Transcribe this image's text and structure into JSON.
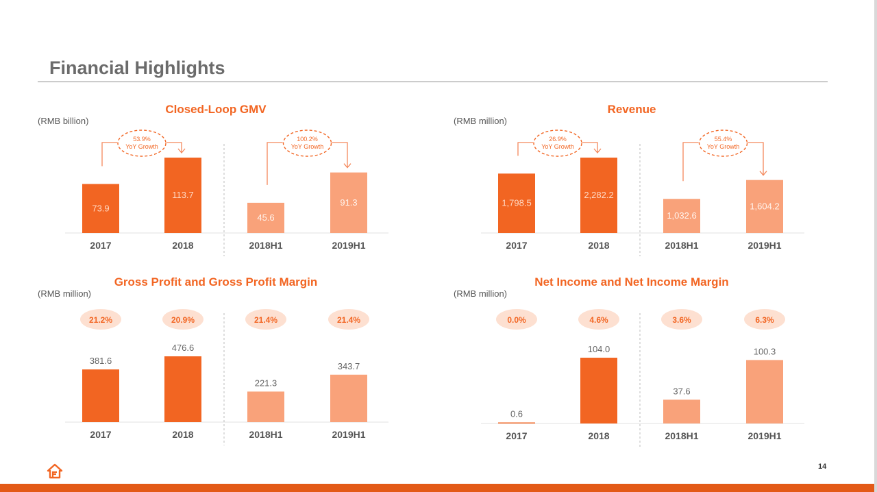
{
  "page": {
    "title": "Financial Highlights",
    "page_number": "14",
    "brand_color": "#f26522",
    "dark_bar_color": "#f26522",
    "light_bar_color": "#f9a27a",
    "logo_icon": "home-logo-icon"
  },
  "chart_data": [
    {
      "type": "bar",
      "title": "Closed-Loop GMV",
      "unit": "(RMB billion)",
      "categories": [
        "2017",
        "2018",
        "2018H1",
        "2019H1"
      ],
      "values": [
        73.9,
        113.7,
        45.6,
        91.3
      ],
      "value_labels": [
        "73.9",
        "113.7",
        "45.6",
        "91.3"
      ],
      "label_position": "inside",
      "growth": [
        {
          "from": 0,
          "to": 1,
          "pct": "53.9%",
          "label": "YoY Growth"
        },
        {
          "from": 2,
          "to": 3,
          "pct": "100.2%",
          "label": "YoY Growth"
        }
      ]
    },
    {
      "type": "bar",
      "title": "Revenue",
      "unit": "(RMB million)",
      "categories": [
        "2017",
        "2018",
        "2018H1",
        "2019H1"
      ],
      "values": [
        1798.5,
        2282.2,
        1032.6,
        1604.2
      ],
      "value_labels": [
        "1,798.5",
        "2,282.2",
        "1,032.6",
        "1,604.2"
      ],
      "label_position": "inside",
      "growth": [
        {
          "from": 0,
          "to": 1,
          "pct": "26.9%",
          "label": "YoY Growth"
        },
        {
          "from": 2,
          "to": 3,
          "pct": "55.4%",
          "label": "YoY Growth"
        }
      ]
    },
    {
      "type": "bar",
      "title": "Gross Profit and Gross Profit Margin",
      "unit": "(RMB million)",
      "categories": [
        "2017",
        "2018",
        "2018H1",
        "2019H1"
      ],
      "values": [
        381.6,
        476.6,
        221.3,
        343.7
      ],
      "value_labels": [
        "381.6",
        "476.6",
        "221.3",
        "343.7"
      ],
      "label_position": "above",
      "margins": [
        "21.2%",
        "20.9%",
        "21.4%",
        "21.4%"
      ]
    },
    {
      "type": "bar",
      "title": "Net Income and Net Income Margin",
      "unit": "(RMB million)",
      "categories": [
        "2017",
        "2018",
        "2018H1",
        "2019H1"
      ],
      "values": [
        0.6,
        104.0,
        37.6,
        100.3
      ],
      "value_labels": [
        "0.6",
        "104.0",
        "37.6",
        "100.3"
      ],
      "label_position": "above",
      "margins": [
        "0.0%",
        "4.6%",
        "3.6%",
        "6.3%"
      ]
    }
  ]
}
